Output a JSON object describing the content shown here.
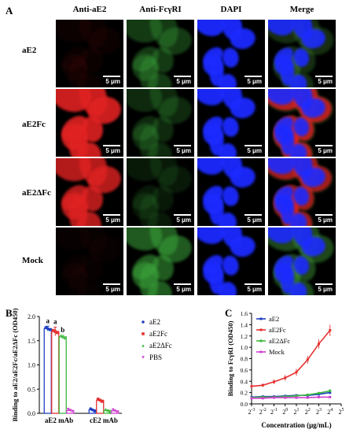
{
  "panel_a": {
    "letter": "A",
    "columns": [
      "Anti-aE2",
      "Anti-FcγRI",
      "DAPI",
      "Merge"
    ],
    "rows": [
      "aE2",
      "aE2Fc",
      "aE2ΔFc",
      "Mock"
    ],
    "scale_bar": "5 μm",
    "channel_colors": {
      "anti_ae2": "#e02020",
      "anti_fcgri": "#3aa53a",
      "dapi": "#1a2cff"
    },
    "intensity": {
      "anti_ae2": [
        0.05,
        0.9,
        0.8,
        0.03
      ],
      "anti_fcgri": [
        0.35,
        0.25,
        0.15,
        0.55
      ]
    }
  },
  "panel_b": {
    "letter": "B",
    "chart_data": {
      "type": "bar",
      "categories": [
        "aE2 mAb",
        "cE2 mAb"
      ],
      "series": [
        {
          "name": "aE2",
          "color": "#1f3fbf",
          "values": [
            1.75,
            0.07
          ],
          "errors": [
            0.05,
            0.01
          ],
          "marker": "circle"
        },
        {
          "name": "aE2Fc",
          "color": "#e53030",
          "values": [
            1.69,
            0.27
          ],
          "errors": [
            0.09,
            0.02
          ],
          "marker": "square"
        },
        {
          "name": "aE2ΔFc",
          "color": "#3db83d",
          "values": [
            1.58,
            0.06
          ],
          "errors": [
            0.03,
            0.01
          ],
          "marker": "triangle"
        },
        {
          "name": "PBS",
          "color": "#d040d0",
          "values": [
            0.06,
            0.05
          ],
          "errors": [
            0.01,
            0.01
          ],
          "marker": "inv-triangle"
        }
      ],
      "significance": [
        [
          "a",
          "a",
          "b",
          ""
        ],
        [
          "",
          "",
          "",
          ""
        ]
      ],
      "ylabel": "Binding to aE2/aE2Fc/aE2ΔFc (OD450)",
      "ylim": [
        0,
        2.0
      ],
      "yticks": [
        "0.0",
        "0.5",
        "1.0",
        "1.5",
        "2.0"
      ],
      "legend": "right"
    }
  },
  "panel_c": {
    "letter": "C",
    "chart_data": {
      "type": "line",
      "xscale": "log2",
      "x": [
        0.125,
        0.25,
        0.5,
        1,
        2,
        4,
        8,
        16
      ],
      "xticks": [
        "2-3",
        "2-2",
        "2-1",
        "20",
        "21",
        "22",
        "23",
        "24",
        "25"
      ],
      "xlabel": "Concentration (μg/mL)",
      "ylabel": "Binding to FcγRI (OD450)",
      "ylim": [
        0,
        1.6
      ],
      "yticks": [
        "0.0",
        "0.2",
        "0.4",
        "0.6",
        "0.8",
        "1.0",
        "1.2",
        "1.4",
        "1.6"
      ],
      "series": [
        {
          "name": "aE2",
          "color": "#1f3fbf",
          "values": [
            0.12,
            0.13,
            0.13,
            0.14,
            0.15,
            0.15,
            0.17,
            0.2
          ],
          "errors": [
            0.01,
            0.01,
            0.01,
            0.01,
            0.01,
            0.02,
            0.02,
            0.03
          ]
        },
        {
          "name": "aE2Fc",
          "color": "#e53030",
          "values": [
            0.31,
            0.33,
            0.39,
            0.46,
            0.56,
            0.78,
            1.06,
            1.3
          ],
          "errors": [
            0.03,
            0.03,
            0.04,
            0.05,
            0.06,
            0.07,
            0.08,
            0.1
          ]
        },
        {
          "name": "aE2ΔFc",
          "color": "#3db83d",
          "values": [
            0.11,
            0.12,
            0.12,
            0.13,
            0.14,
            0.16,
            0.19,
            0.23
          ],
          "errors": [
            0.01,
            0.01,
            0.01,
            0.01,
            0.02,
            0.02,
            0.02,
            0.03
          ]
        },
        {
          "name": "Mock",
          "color": "#d040d0",
          "values": [
            0.1,
            0.1,
            0.11,
            0.11,
            0.11,
            0.11,
            0.12,
            0.12
          ],
          "errors": [
            0.01,
            0.01,
            0.01,
            0.01,
            0.01,
            0.01,
            0.01,
            0.01
          ]
        }
      ],
      "legend": "top-left"
    }
  }
}
